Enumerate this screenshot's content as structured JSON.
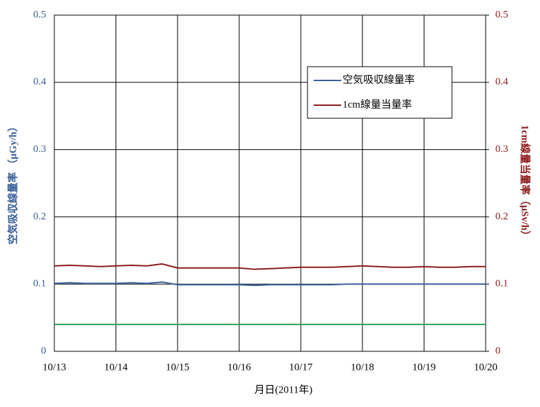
{
  "chart_data": {
    "type": "line",
    "x_label": "月日(2011年)",
    "y_label": "空気吸収線量率 （μGy/h）",
    "y2_label": "1cm線量当量率（μSv/h）",
    "categories": [
      "10/13",
      null,
      null,
      null,
      "10/14",
      null,
      null,
      null,
      "10/15",
      null,
      null,
      null,
      "10/16",
      null,
      null,
      null,
      "10/17",
      null,
      null,
      null,
      "10/18",
      null,
      null,
      null,
      "10/19",
      null,
      null,
      null,
      "10/20"
    ],
    "series": [
      {
        "name": "空気吸収線量率",
        "color": "#3a5f9a",
        "values": [
          0.101,
          0.102,
          0.101,
          0.101,
          0.101,
          0.102,
          0.101,
          0.103,
          0.099,
          0.099,
          0.099,
          0.099,
          0.099,
          0.098,
          0.099,
          0.099,
          0.099,
          0.099,
          0.099,
          0.1,
          0.1,
          0.1,
          0.1,
          0.1,
          0.1,
          0.1,
          0.1,
          0.1,
          0.1
        ]
      },
      {
        "name": "1cm線量当量率",
        "color": "#8b1a1a",
        "axis": "y2",
        "values": [
          0.127,
          0.128,
          0.127,
          0.126,
          0.127,
          0.128,
          0.127,
          0.13,
          0.124,
          0.124,
          0.124,
          0.124,
          0.124,
          0.122,
          0.123,
          0.124,
          0.125,
          0.125,
          0.125,
          0.126,
          0.127,
          0.126,
          0.125,
          0.125,
          0.126,
          0.125,
          0.125,
          0.126,
          0.126
        ]
      }
    ],
    "reference_line": {
      "value": 0.04,
      "color": "#2ea25a"
    },
    "ylim": [
      0,
      0.5
    ],
    "yticks": [
      0,
      0.1,
      0.2,
      0.3,
      0.4,
      0.5
    ],
    "y2lim": [
      0,
      0.5
    ],
    "y2ticks": [
      0,
      0.1,
      0.2,
      0.3,
      0.4,
      0.5
    ],
    "grid": true,
    "legend": "upper right"
  }
}
